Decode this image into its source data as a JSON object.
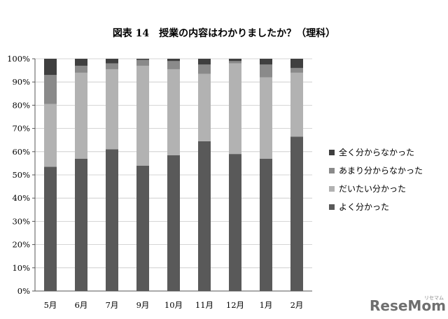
{
  "chart_data": {
    "type": "bar",
    "stacked": true,
    "title": "図表 14　授業の内容はわかりましたか？（理科）",
    "categories": [
      "5月",
      "6月",
      "7月",
      "9月",
      "10月",
      "11月",
      "12月",
      "1月",
      "2月"
    ],
    "y_ticks": [
      "0%",
      "10%",
      "20%",
      "30%",
      "40%",
      "50%",
      "60%",
      "70%",
      "80%",
      "90%",
      "100%"
    ],
    "ylim": [
      0,
      100
    ],
    "legend_position": "right",
    "series": [
      {
        "name": "よく分かった",
        "color": "#595959",
        "values": [
          53.5,
          57,
          61,
          54,
          58.5,
          64.5,
          59,
          57,
          66.5
        ]
      },
      {
        "name": "だいたい分かった",
        "color": "#b2b2b2",
        "values": [
          27,
          37,
          34.5,
          43,
          37,
          29,
          39,
          35,
          27.5
        ]
      },
      {
        "name": "あまり分からなかった",
        "color": "#8a8a8a",
        "values": [
          12.5,
          3,
          2.5,
          2.5,
          3.5,
          4,
          1,
          5.5,
          2
        ]
      },
      {
        "name": "全く分からなかった",
        "color": "#3f3f3f",
        "values": [
          7,
          3,
          2,
          0.5,
          1,
          2.5,
          1,
          2.5,
          4
        ]
      }
    ],
    "legend_order": [
      3,
      2,
      1,
      0
    ]
  },
  "watermark": {
    "text": "ReseMom",
    "subtext": "リセマム"
  }
}
